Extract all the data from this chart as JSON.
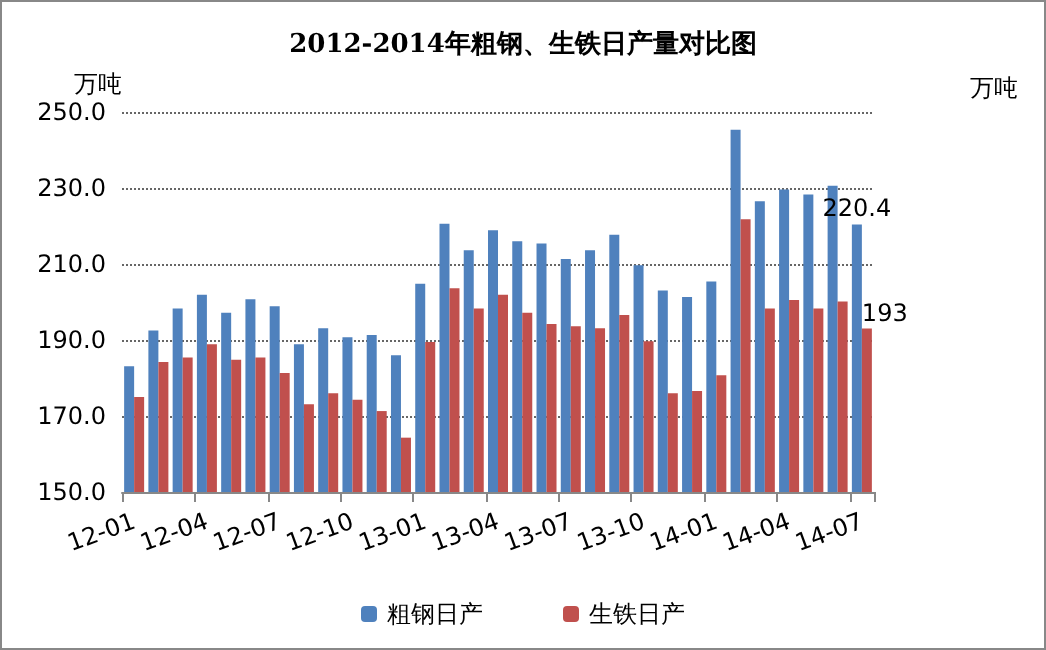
{
  "chart_data": {
    "type": "bar",
    "title": "2012-2014年粗钢、生铁日产量对比图",
    "ylabel": "万吨",
    "annotations": [
      "万吨"
    ],
    "categories": [
      "12-01",
      null,
      null,
      "12-04",
      null,
      null,
      "12-07",
      null,
      null,
      "12-10",
      null,
      null,
      "13-01",
      null,
      null,
      "13-04",
      null,
      null,
      "13-07",
      null,
      null,
      "13-10",
      null,
      null,
      "14-01",
      null,
      null,
      "14-04",
      null,
      null,
      "14-07"
    ],
    "series": [
      {
        "name": "粗钢日产",
        "color": "#4f81bd",
        "values": [
          183.1,
          192.5,
          198.3,
          201.9,
          197.2,
          200.7,
          198.9,
          188.9,
          193.1,
          190.7,
          191.3,
          186.0,
          204.8,
          220.6,
          213.6,
          218.9,
          216.0,
          215.4,
          211.3,
          213.6,
          217.7,
          209.7,
          203.0,
          201.3,
          205.4,
          245.3,
          226.5,
          229.6,
          228.3,
          230.6,
          220.4
        ],
        "value_labels": [
          null,
          null,
          null,
          null,
          null,
          null,
          null,
          null,
          null,
          null,
          null,
          null,
          null,
          null,
          null,
          null,
          null,
          null,
          null,
          null,
          null,
          null,
          null,
          null,
          null,
          null,
          null,
          null,
          null,
          null,
          "220.4"
        ]
      },
      {
        "name": "生铁日产",
        "color": "#c0504d",
        "values": [
          175.0,
          184.2,
          185.4,
          188.9,
          184.8,
          185.4,
          181.3,
          173.1,
          176.0,
          174.3,
          171.3,
          164.3,
          189.5,
          203.6,
          198.3,
          201.9,
          197.2,
          194.2,
          193.6,
          193.1,
          196.6,
          189.7,
          176.0,
          176.6,
          180.7,
          221.8,
          198.3,
          200.5,
          198.3,
          200.1,
          193
        ],
        "value_labels": [
          null,
          null,
          null,
          null,
          null,
          null,
          null,
          null,
          null,
          null,
          null,
          null,
          null,
          null,
          null,
          null,
          null,
          null,
          null,
          null,
          null,
          null,
          null,
          null,
          null,
          null,
          null,
          null,
          null,
          null,
          "193"
        ]
      }
    ],
    "ylim": [
      150,
      250
    ],
    "yticks": [
      {
        "value": 150,
        "label": "150.0"
      },
      {
        "value": 170,
        "label": "170.0"
      },
      {
        "value": 190,
        "label": "190.0"
      },
      {
        "value": 210,
        "label": "210.0"
      },
      {
        "value": 230,
        "label": "230.0"
      },
      {
        "value": 250,
        "label": "250.0"
      }
    ],
    "grid": "y",
    "legend": "bottom"
  }
}
